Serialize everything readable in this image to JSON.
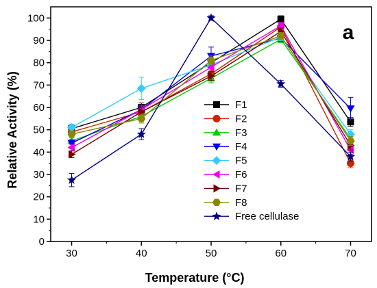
{
  "chart_data": {
    "type": "line",
    "title": "",
    "panel_label": "a",
    "xlabel": "Temperature (°C)",
    "ylabel": "Relative Activity (%)",
    "x": [
      30,
      40,
      50,
      60,
      70
    ],
    "xlim": [
      27,
      73
    ],
    "ylim": [
      0,
      105
    ],
    "xticks": [
      30,
      40,
      50,
      60,
      70
    ],
    "yticks": [
      0,
      10,
      20,
      30,
      40,
      50,
      60,
      70,
      80,
      90,
      100
    ],
    "grid": false,
    "legend_position": "center-right",
    "error_bars": true,
    "series": [
      {
        "name": "F1",
        "marker": "square",
        "color": "#000000",
        "values": [
          50.5,
          60,
          80,
          99.5,
          53.5
        ],
        "errors": [
          1.5,
          2,
          2,
          1.5,
          2
        ]
      },
      {
        "name": "F2",
        "marker": "circle",
        "color": "#cc2200",
        "values": [
          49,
          58,
          75,
          96,
          35
        ],
        "errors": [
          1.5,
          2,
          2,
          1.5,
          2
        ]
      },
      {
        "name": "F3",
        "marker": "triangle-up",
        "color": "#00cc00",
        "values": [
          45,
          56,
          73,
          90.5,
          46
        ],
        "errors": [
          1.5,
          2,
          2,
          1.5,
          2
        ]
      },
      {
        "name": "F4",
        "marker": "triangle-down",
        "color": "#0000ee",
        "values": [
          44,
          59,
          83,
          91,
          59.5
        ],
        "errors": [
          1.5,
          2,
          4,
          1.5,
          5
        ]
      },
      {
        "name": "F5",
        "marker": "diamond",
        "color": "#33ccff",
        "values": [
          51,
          68.5,
          79,
          91.5,
          48
        ],
        "errors": [
          1.5,
          5,
          2,
          1.5,
          2
        ]
      },
      {
        "name": "F6",
        "marker": "triangle-left",
        "color": "#ee00ee",
        "values": [
          42,
          59,
          78,
          96.5,
          41
        ],
        "errors": [
          1.5,
          2,
          2,
          1.5,
          2
        ]
      },
      {
        "name": "F7",
        "marker": "triangle-right",
        "color": "#770000",
        "values": [
          39,
          58,
          74,
          94,
          43
        ],
        "errors": [
          1.5,
          2,
          2,
          1.5,
          2
        ]
      },
      {
        "name": "F8",
        "marker": "hexagon",
        "color": "#888800",
        "values": [
          48,
          55,
          81,
          92,
          45
        ],
        "errors": [
          1.5,
          2,
          2,
          1.5,
          2
        ]
      },
      {
        "name": "Free cellulase",
        "marker": "star",
        "color": "#000080",
        "values": [
          27.5,
          48,
          100,
          70.5,
          38
        ],
        "errors": [
          3,
          2.5,
          1,
          1.5,
          2
        ]
      }
    ]
  }
}
